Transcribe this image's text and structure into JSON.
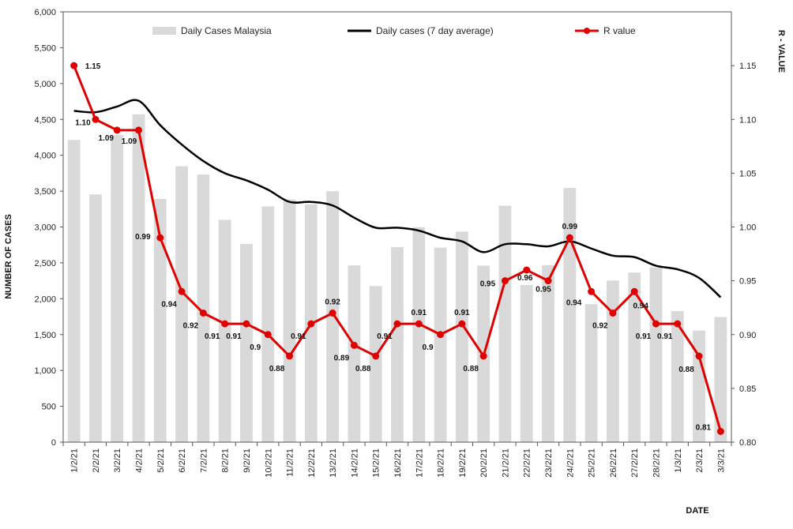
{
  "chart_data": {
    "type": "bar",
    "categories": [
      "1/2/21",
      "2/2/21",
      "3/2/21",
      "4/2/21",
      "5/2/21",
      "6/2/21",
      "7/2/21",
      "8/2/21",
      "9/2/21",
      "10/2/21",
      "11/2/21",
      "12/2/21",
      "13/2/21",
      "14/2/21",
      "15/2/21",
      "16/2/21",
      "17/2/21",
      "18/2/21",
      "19/2/21",
      "20/2/21",
      "21/2/21",
      "22/2/21",
      "23/2/21",
      "24/2/21",
      "25/2/21",
      "26/2/21",
      "27/2/21",
      "28/2/21",
      "1/3/21",
      "2/3/21",
      "3/3/21"
    ],
    "series": [
      {
        "name": "Daily Cases Malaysia",
        "type": "bar",
        "axis": "left",
        "color": "#d9d9d9",
        "values": [
          4214,
          3455,
          4284,
          4571,
          3391,
          3847,
          3731,
          3100,
          2764,
          3288,
          3384,
          3317,
          3499,
          2464,
          2176,
          2720,
          2998,
          2712,
          2936,
          2461,
          3297,
          2192,
          2468,
          3545,
          1924,
          2253,
          2364,
          2437,
          1828,
          1555,
          1745
        ]
      },
      {
        "name": "Daily cases (7 day average)",
        "type": "line",
        "axis": "left",
        "color": "#000000",
        "values": [
          4620,
          4600,
          4680,
          4760,
          4420,
          4150,
          3920,
          3750,
          3650,
          3520,
          3350,
          3350,
          3300,
          3130,
          2990,
          2990,
          2950,
          2850,
          2800,
          2650,
          2760,
          2760,
          2730,
          2800,
          2700,
          2600,
          2580,
          2460,
          2410,
          2290,
          2020
        ]
      },
      {
        "name": "R value",
        "type": "line",
        "axis": "right",
        "color": "#e00000",
        "values": [
          1.15,
          1.1,
          1.09,
          1.09,
          0.99,
          0.94,
          0.92,
          0.91,
          0.91,
          0.9,
          0.88,
          0.91,
          0.92,
          0.89,
          0.88,
          0.91,
          0.91,
          0.9,
          0.91,
          0.88,
          0.95,
          0.96,
          0.95,
          0.99,
          0.94,
          0.92,
          0.94,
          0.91,
          0.91,
          0.88,
          0.81
        ],
        "labels": [
          "1.15",
          "1.10",
          "1.09",
          "1.09",
          "0.99",
          "0.94",
          "0.92",
          "0.91",
          "0.91",
          "0.9",
          "0.88",
          "0.91",
          "0.92",
          "0.89",
          "0.88",
          "0.91",
          "0.91",
          "0.9",
          "0.91",
          "0.88",
          "0.95",
          "0.96",
          "0.95",
          "0.99",
          "0.94",
          "0.92",
          "0.94",
          "0.91",
          "0.91",
          "0.88",
          "0.81"
        ]
      }
    ],
    "ylabel": "NUMBER  OF CASES",
    "y2label": "R - VALUE",
    "xlabel": "DATE",
    "ylim": [
      0,
      6000
    ],
    "y2lim": [
      0.8,
      1.2
    ],
    "yticks": [
      "0",
      "500",
      "1,000",
      "1,500",
      "2,000",
      "2,500",
      "3,000",
      "3,500",
      "4,000",
      "4,500",
      "5,000",
      "5,500",
      "6,000"
    ],
    "y2ticks": [
      "0.80",
      "0.85",
      "0.90",
      "0.95",
      "1.00",
      "1.05",
      "1.10",
      "1.15"
    ],
    "grid": false,
    "legend": "top"
  }
}
